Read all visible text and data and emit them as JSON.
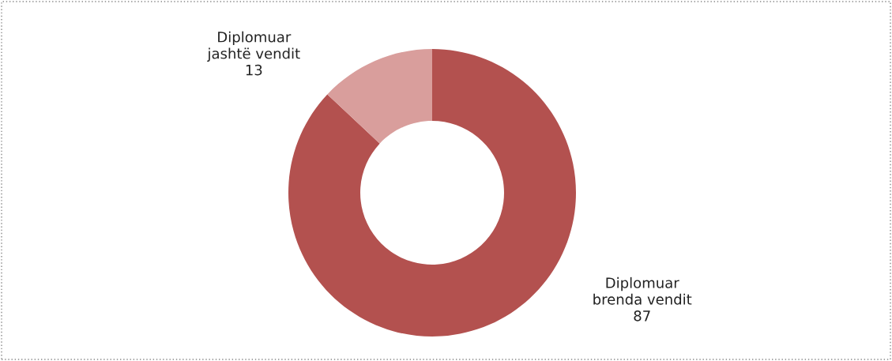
{
  "chart_data": {
    "type": "donut",
    "categories": [
      "Diplomuar brenda vendit",
      "Diplomuar jashtë vendit"
    ],
    "values": [
      87,
      13
    ],
    "colors": [
      "#b3514f",
      "#d99e9c"
    ],
    "data_labels": true
  }
}
